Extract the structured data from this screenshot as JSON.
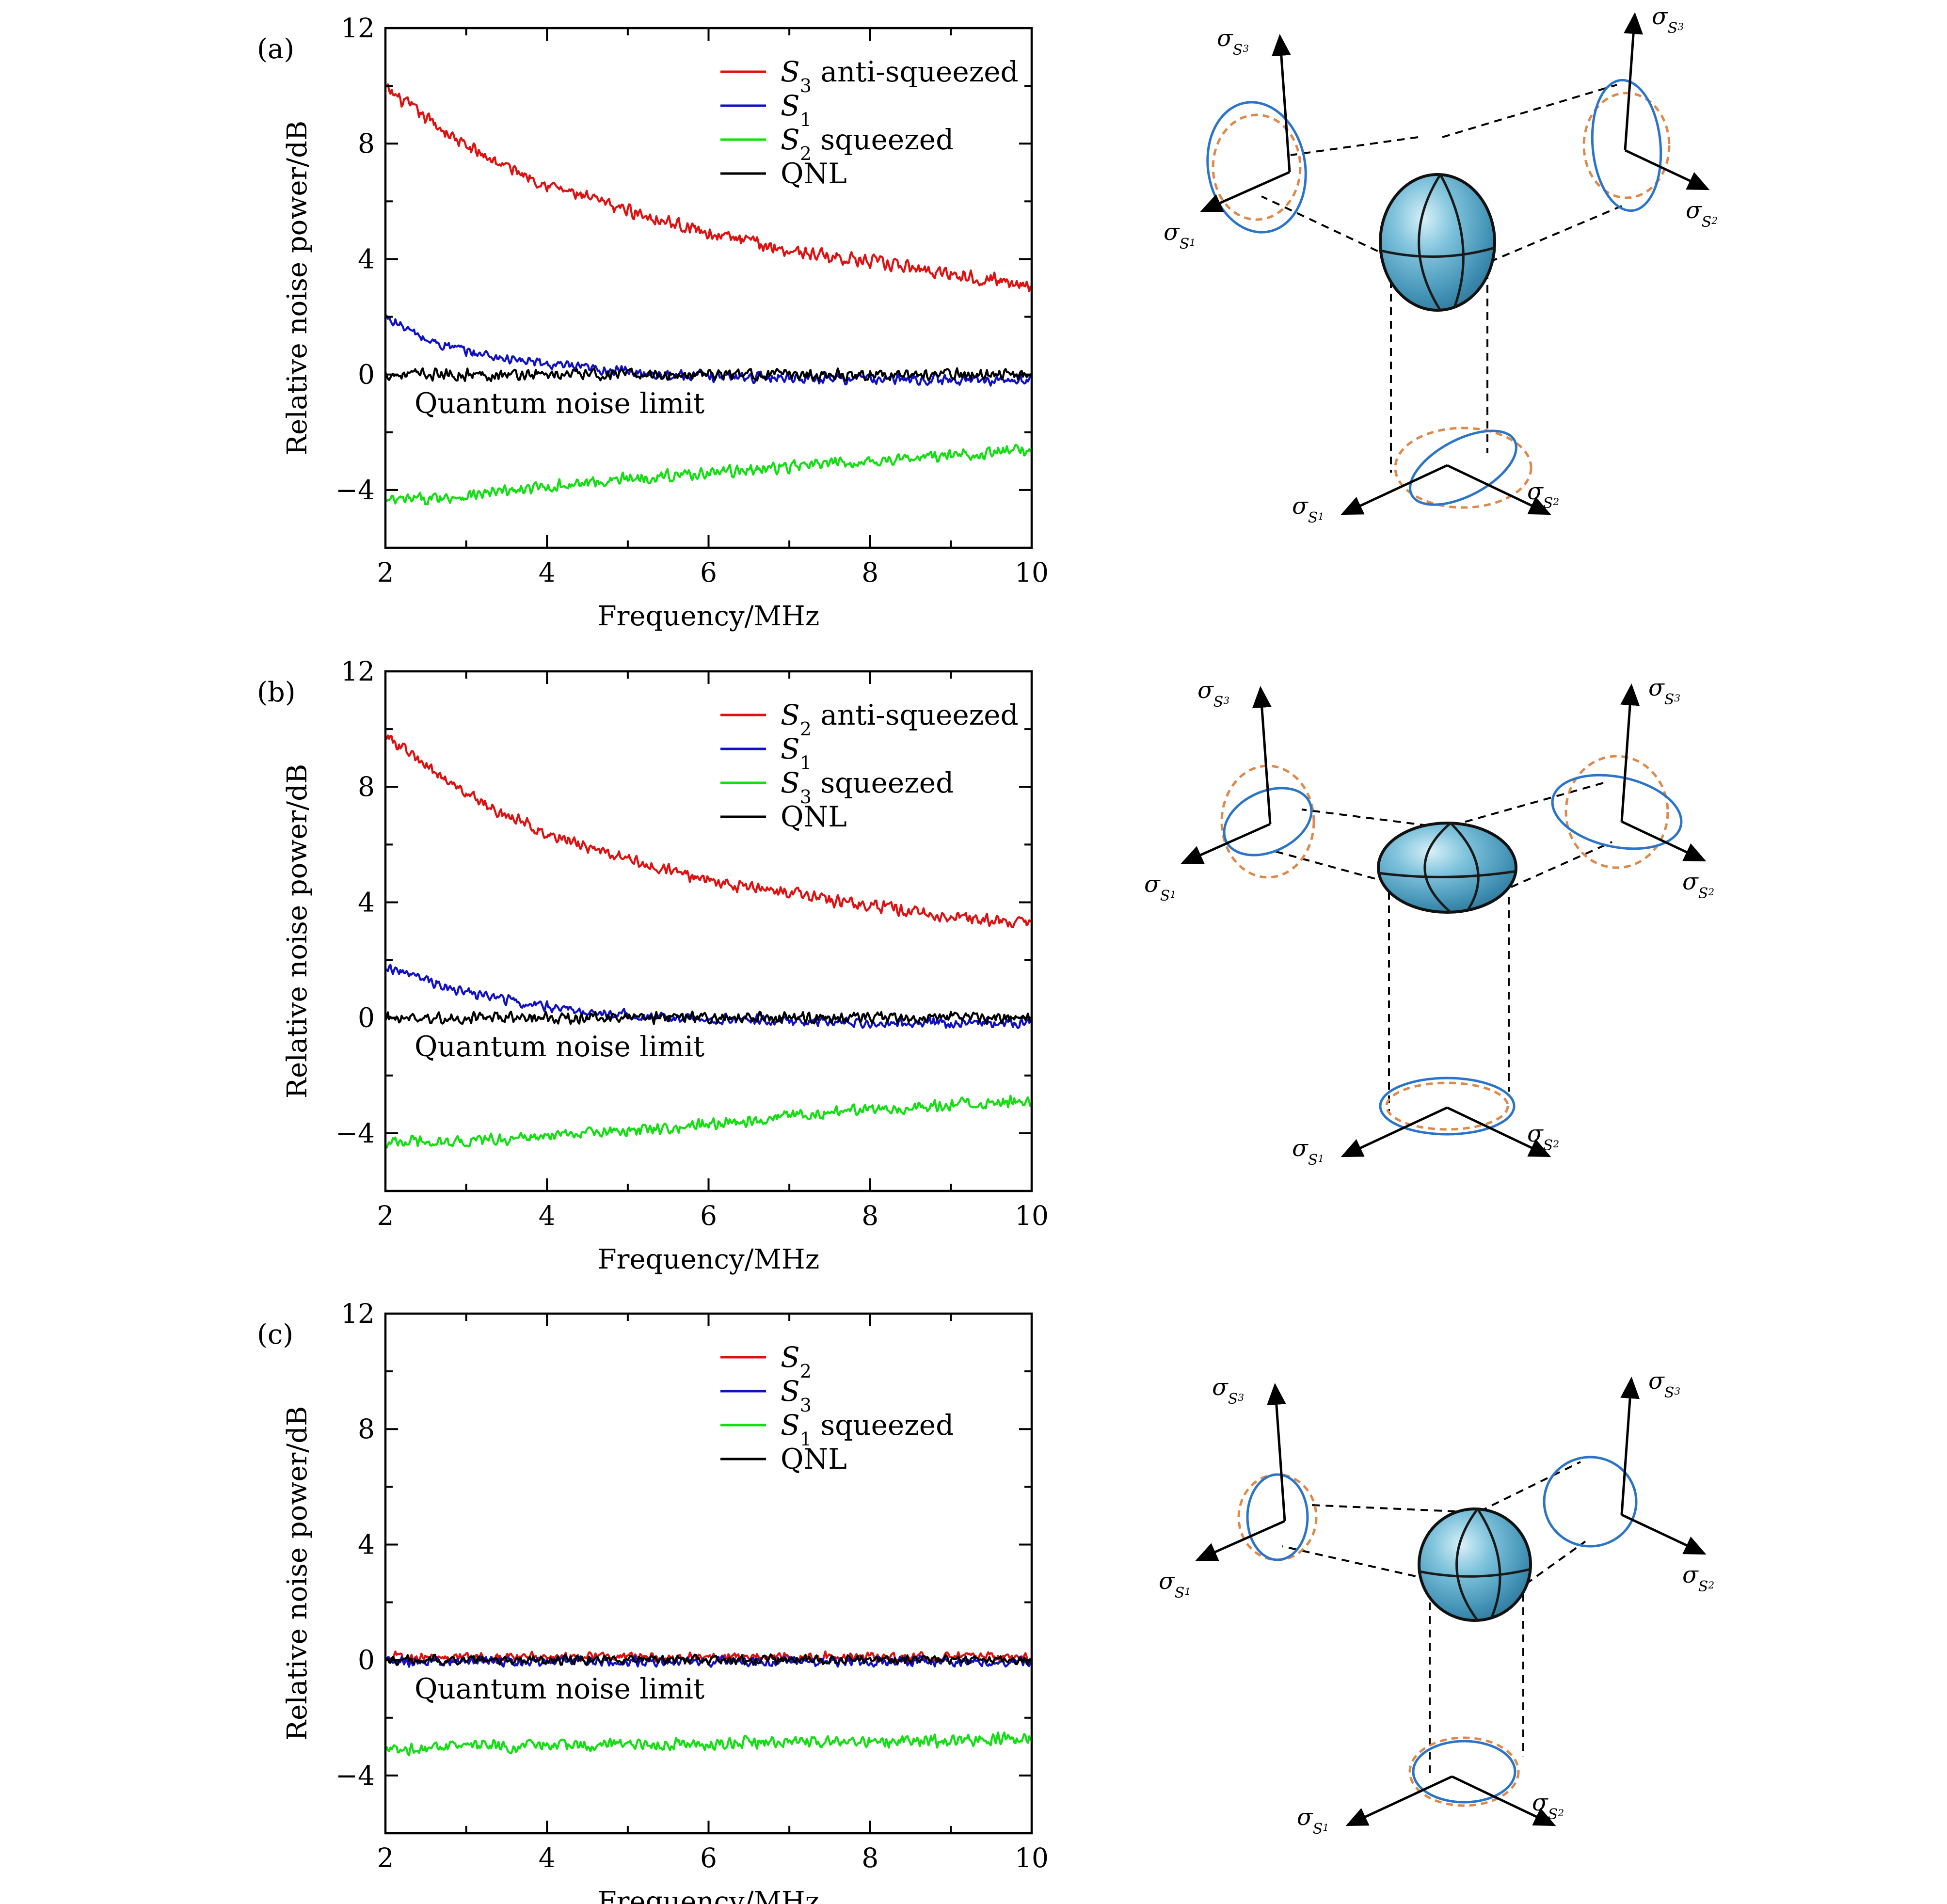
{
  "chart_data": [
    {
      "type": "line",
      "panel_label": "(a)",
      "xlabel": "Frequency/MHz",
      "ylabel": "Relative noise power/dB",
      "xlim": [
        2,
        10
      ],
      "ylim": [
        -6,
        12
      ],
      "xticks": [
        2,
        4,
        6,
        8,
        10
      ],
      "yticks": [
        12,
        8,
        4,
        0,
        -4
      ],
      "annotation": "Quantum noise limit",
      "legend_position": "top-right",
      "series": [
        {
          "name": "S3 anti-squeezed",
          "color": "#e01010",
          "noise": 0.28,
          "x": [
            2,
            2.5,
            3,
            3.5,
            4,
            4.5,
            5,
            5.5,
            6,
            6.5,
            7,
            7.5,
            8,
            8.5,
            9,
            9.5,
            10
          ],
          "values": [
            9.9,
            8.9,
            7.9,
            7.2,
            6.6,
            6.1,
            5.7,
            5.3,
            4.9,
            4.6,
            4.3,
            4.1,
            3.9,
            3.7,
            3.5,
            3.3,
            3.1
          ]
        },
        {
          "name": "S1",
          "color": "#1010c8",
          "noise": 0.22,
          "x": [
            2,
            2.5,
            3,
            3.5,
            4,
            4.5,
            5,
            5.5,
            6,
            7,
            8,
            9,
            10
          ],
          "values": [
            2.0,
            1.2,
            0.8,
            0.55,
            0.35,
            0.2,
            0.1,
            0.0,
            -0.05,
            -0.1,
            -0.15,
            -0.2,
            -0.2
          ]
        },
        {
          "name": "S2 squeezed",
          "color": "#10e010",
          "noise": 0.25,
          "x": [
            2,
            3,
            4,
            5,
            6,
            7,
            8,
            9,
            10
          ],
          "values": [
            -4.4,
            -4.2,
            -3.9,
            -3.6,
            -3.4,
            -3.2,
            -3.0,
            -2.8,
            -2.6
          ]
        },
        {
          "name": "QNL",
          "color": "#000000",
          "noise": 0.24,
          "x": [
            2,
            10
          ],
          "values": [
            0.0,
            0.0
          ]
        }
      ]
    },
    {
      "type": "line",
      "panel_label": "(b)",
      "xlabel": "Frequency/MHz",
      "ylabel": "Relative noise power/dB",
      "xlim": [
        2,
        10
      ],
      "ylim": [
        -6,
        12
      ],
      "xticks": [
        2,
        4,
        6,
        8,
        10
      ],
      "yticks": [
        12,
        8,
        4,
        0,
        -4
      ],
      "annotation": "Quantum noise limit",
      "legend_position": "top-right",
      "series": [
        {
          "name": "S2 anti-squeezed",
          "color": "#e01010",
          "noise": 0.26,
          "x": [
            2,
            2.5,
            3,
            3.5,
            4,
            4.5,
            5,
            5.5,
            6,
            6.5,
            7,
            7.5,
            8,
            8.5,
            9,
            9.5,
            10
          ],
          "values": [
            9.8,
            8.7,
            7.8,
            7.0,
            6.4,
            5.9,
            5.5,
            5.1,
            4.8,
            4.5,
            4.3,
            4.1,
            3.9,
            3.7,
            3.5,
            3.4,
            3.3
          ]
        },
        {
          "name": "S1",
          "color": "#1010c8",
          "noise": 0.22,
          "x": [
            2,
            2.5,
            3,
            3.5,
            4,
            4.5,
            5,
            5.5,
            6,
            7,
            8,
            9,
            10
          ],
          "values": [
            1.8,
            1.3,
            0.9,
            0.6,
            0.4,
            0.2,
            0.1,
            0.0,
            -0.05,
            -0.1,
            -0.15,
            -0.2,
            -0.2
          ]
        },
        {
          "name": "S3 squeezed",
          "color": "#10e010",
          "noise": 0.25,
          "x": [
            2,
            3,
            4,
            5,
            6,
            7,
            8,
            9,
            10
          ],
          "values": [
            -4.3,
            -4.3,
            -4.1,
            -3.9,
            -3.7,
            -3.4,
            -3.2,
            -3.0,
            -2.9
          ]
        },
        {
          "name": "QNL",
          "color": "#000000",
          "noise": 0.24,
          "x": [
            2,
            10
          ],
          "values": [
            0.0,
            0.0
          ]
        }
      ]
    },
    {
      "type": "line",
      "panel_label": "(c)",
      "xlabel": "Frequency/MHz",
      "ylabel": "Relative noise power/dB",
      "xlim": [
        2,
        10
      ],
      "ylim": [
        -6,
        12
      ],
      "xticks": [
        2,
        4,
        6,
        8,
        10
      ],
      "yticks": [
        12,
        8,
        4,
        0,
        -4
      ],
      "annotation": "Quantum noise limit",
      "legend_position": "top-right",
      "series": [
        {
          "name": "S2",
          "color": "#e01010",
          "noise": 0.2,
          "x": [
            2,
            10
          ],
          "values": [
            0.1,
            0.1
          ]
        },
        {
          "name": "S3",
          "color": "#1010c8",
          "noise": 0.2,
          "x": [
            2,
            10
          ],
          "values": [
            -0.05,
            -0.05
          ]
        },
        {
          "name": "S1 squeezed",
          "color": "#10e010",
          "noise": 0.25,
          "x": [
            2,
            3,
            4,
            5,
            6,
            7,
            8,
            9,
            10
          ],
          "values": [
            -3.1,
            -3.0,
            -3.0,
            -2.9,
            -2.9,
            -2.8,
            -2.8,
            -2.8,
            -2.7
          ]
        },
        {
          "name": "QNL",
          "color": "#000000",
          "noise": 0.2,
          "x": [
            2,
            10
          ],
          "values": [
            0.0,
            0.0
          ]
        }
      ]
    }
  ],
  "diagrams": [
    {
      "axis_labels": {
        "s3_left": "σS3",
        "s1_left": "σS1",
        "s3_right": "σS3",
        "s2_right": "σS2",
        "s1_bottom": "σS1",
        "s2_bottom": "σS2"
      }
    },
    {
      "axis_labels": {
        "s3_left": "σS3",
        "s1_left": "σS1",
        "s3_right": "σS3",
        "s2_right": "σS2",
        "s1_bottom": "σS1",
        "s2_bottom": "σS2"
      }
    },
    {
      "axis_labels": {
        "s3_left": "σS3",
        "s1_left": "σS1",
        "s3_right": "σS3",
        "s2_right": "σS2",
        "s1_bottom": "σS1",
        "s2_bottom": "σS2"
      }
    }
  ],
  "colors": {
    "anti_squeezed": "#e01010",
    "s1": "#1010c8",
    "squeezed": "#10e010",
    "qnl": "#000000",
    "ellipse": "#2a74c9",
    "coherent": "#e0884a",
    "sphere": "#4fa6c8"
  }
}
